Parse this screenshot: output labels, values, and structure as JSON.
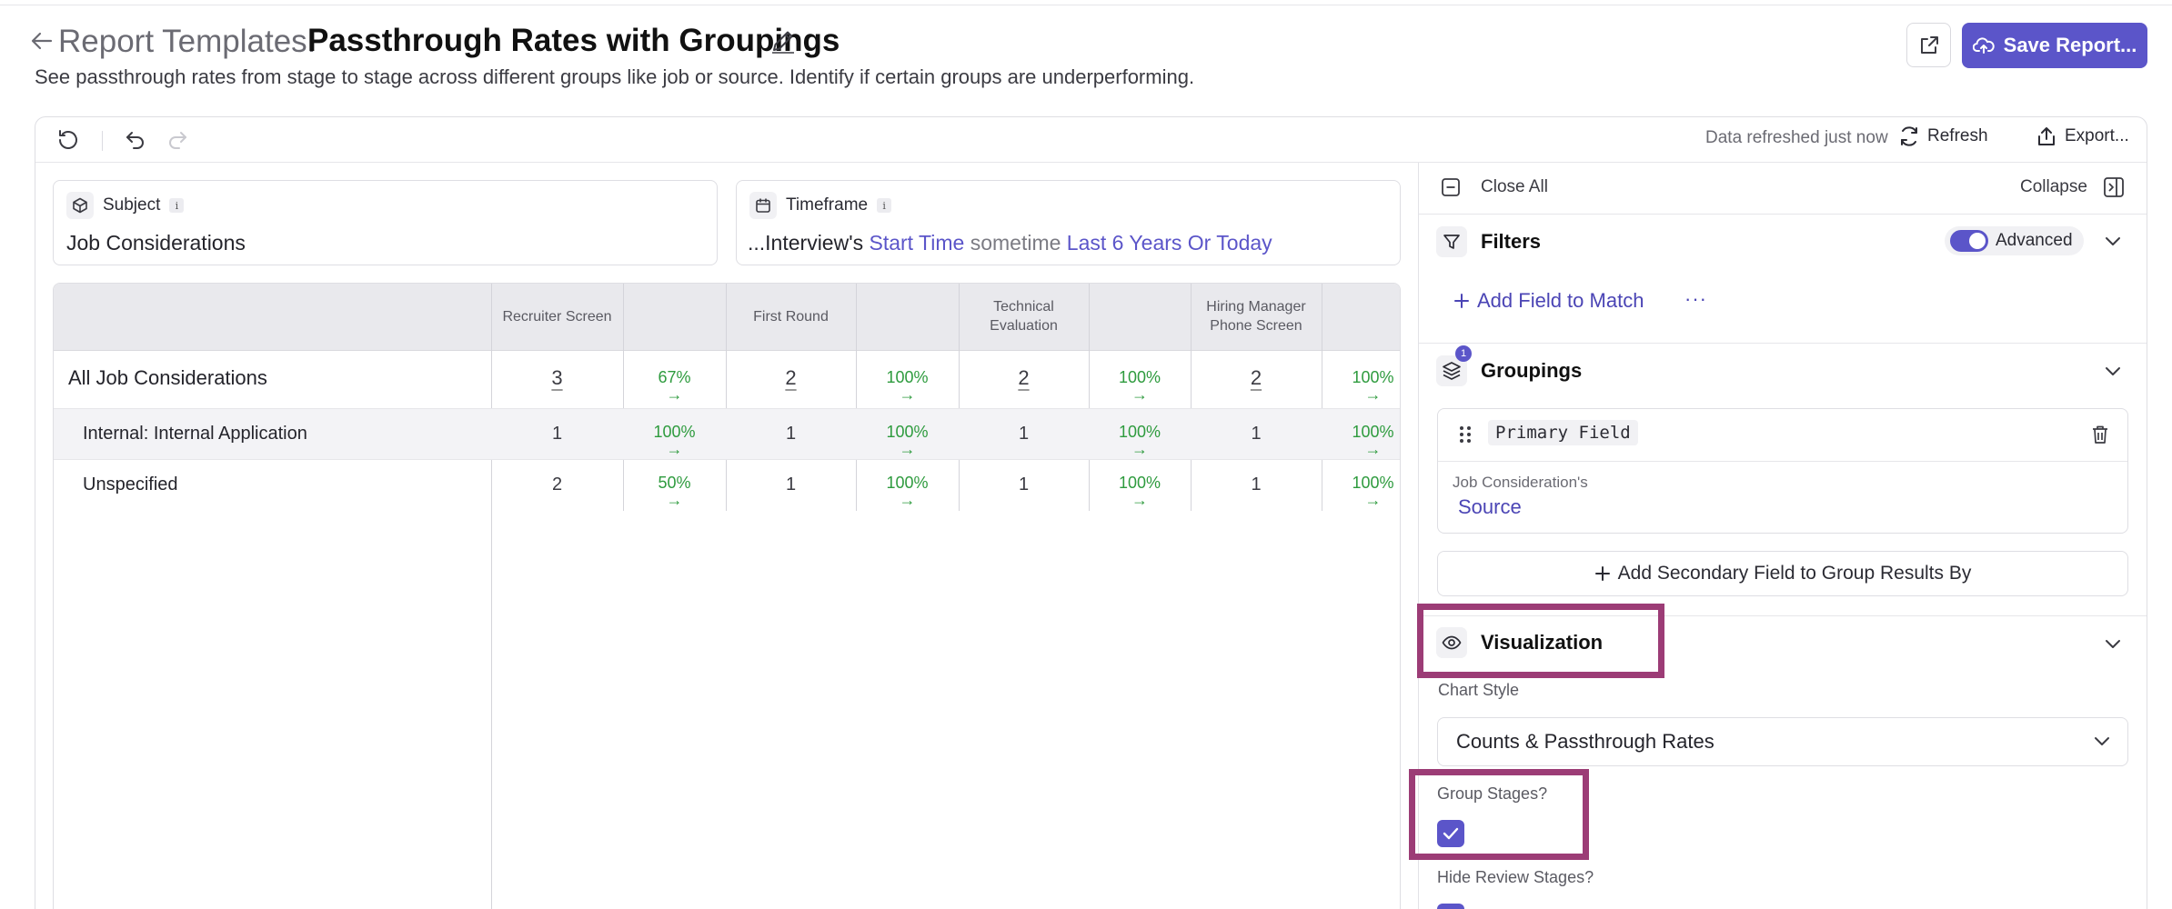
{
  "header": {
    "breadcrumb": "Report Templates:",
    "title": "Passthrough Rates with Groupings",
    "subtitle": "See passthrough rates from stage to stage across different groups like job or source. Identify if certain groups are underperforming.",
    "save_label": "Save Report..."
  },
  "toolbar": {
    "refresh_status": "Data refreshed just now",
    "refresh_label": "Refresh",
    "export_label": "Export..."
  },
  "subject": {
    "label": "Subject",
    "value": "Job Considerations"
  },
  "timeframe": {
    "label": "Timeframe",
    "prefix": "...Interview's",
    "field": "Start Time",
    "operator": "sometime",
    "range": "Last 6 Years Or Today"
  },
  "table": {
    "stages": [
      "Recruiter Screen",
      "First Round",
      "Technical Evaluation",
      "Hiring Manager Phone Screen"
    ],
    "rows": [
      {
        "label": "All Job Considerations",
        "counts": [
          "3",
          "2",
          "2",
          "2"
        ],
        "rates": [
          "67%",
          "100%",
          "100%",
          "100%"
        ]
      },
      {
        "label": "Internal: Internal Application",
        "counts": [
          "1",
          "1",
          "1",
          "1"
        ],
        "rates": [
          "100%",
          "100%",
          "100%",
          "100%"
        ]
      },
      {
        "label": "Unspecified",
        "counts": [
          "2",
          "1",
          "1",
          "1"
        ],
        "rates": [
          "50%",
          "100%",
          "100%",
          "100%"
        ]
      }
    ],
    "arrow": "→"
  },
  "panel": {
    "close_all": "Close All",
    "collapse": "Collapse",
    "filters": {
      "title": "Filters",
      "advanced_label": "Advanced",
      "advanced_on": true,
      "add_field": "Add Field to Match",
      "more": "···"
    },
    "groupings": {
      "title": "Groupings",
      "count": "1",
      "primary_tag": "Primary Field",
      "field_label": "Job Consideration's",
      "field_value": "Source",
      "add_secondary": "Add Secondary Field to Group Results By"
    },
    "visualization": {
      "title": "Visualization",
      "chart_style_label": "Chart Style",
      "chart_style_value": "Counts & Passthrough Rates",
      "group_stages_label": "Group Stages?",
      "group_stages_checked": true,
      "hide_review_label": "Hide Review Stages?"
    }
  },
  "colors": {
    "accent": "#5b55c9",
    "positive": "#2e9b3e",
    "highlight": "#9c3c76"
  }
}
